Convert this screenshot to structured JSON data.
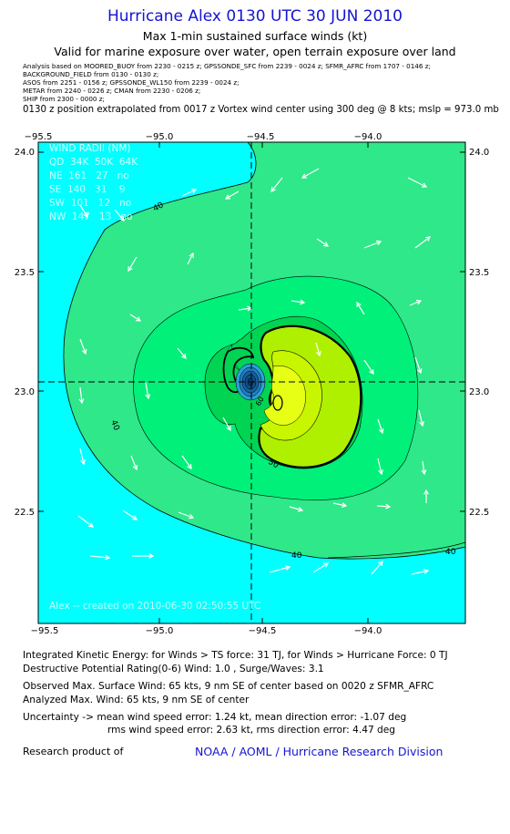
{
  "header": {
    "title": "Hurricane Alex 0130 UTC 30 JUN 2010",
    "subtitle1": "Max 1-min sustained surface winds (kt)",
    "subtitle2": "Valid for marine exposure over water, open terrain exposure over land"
  },
  "sources": [
    "Analysis based on  MOORED_BUOY from 2230 - 0215 z;  GPSSONDE_SFC from 2239 - 0024 z;  SFMR_AFRC from 1707 - 0146 z;",
    "BACKGROUND_FIELD from 0130 - 0130 z;",
    "ASOS from 2251 - 0156 z;  GPSSONDE_WL150 from 2239 - 0024 z;",
    "METAR from 2240 - 0226 z;  CMAN from 2230 - 0206 z;",
    "SHIP from 2300 - 0000 z;"
  ],
  "position_note": "0130 z position extrapolated from 0017 z Vortex wind center using 300 deg @ 8 kts; mslp = 973.0 mb",
  "map": {
    "x_ticks": [
      "−95.5",
      "−95.0",
      "−94.5",
      "−94.0"
    ],
    "y_ticks": [
      "24.0",
      "23.5",
      "23.0",
      "22.5"
    ],
    "contour_labels": [
      "40",
      "40",
      "40",
      "50",
      "60"
    ],
    "wind_radii": {
      "title": "WIND RADII (NM)",
      "header": "QD  34K  50K  64K",
      "rows": [
        "NE  161   27   no",
        "SE  140   31    9",
        "SW  101   12   no",
        "NW  147   13   no"
      ]
    },
    "watermark": "Alex -- created on 2010-06-30 02:50:55 UTC",
    "colors": {
      "ocean": "#00ffff",
      "ts_34": "#2ee88a",
      "band_40": "#00f07a",
      "band_50": "#00d452",
      "hurricane_64": "#aef000",
      "core": "#e6ff14",
      "eye": "#0f4f8a"
    }
  },
  "info": {
    "ike": "Integrated Kinetic Energy:  for Winds > TS force: 31 TJ,  for Winds > Hurricane Force: 0 TJ",
    "destructive": "Destructive Potential Rating(0-6)   Wind: 1.0 , Surge/Waves: 3.1",
    "observed": "Observed Max. Surface Wind: 65 kts, 9 nm SE of center based on 0020 z SFMR_AFRC",
    "analyzed": "Analyzed Max. Wind: 65 kts, 9 nm SE of center",
    "uncertainty1": "Uncertainty -> mean wind speed error: 1.24 kt,   mean direction error:  -1.07 deg",
    "uncertainty2": "rms wind speed error: 2.63 kt,   rms direction error: 4.47 deg"
  },
  "footer": {
    "label": "Research product of",
    "org": "NOAA / AOML / Hurricane Research Division"
  }
}
